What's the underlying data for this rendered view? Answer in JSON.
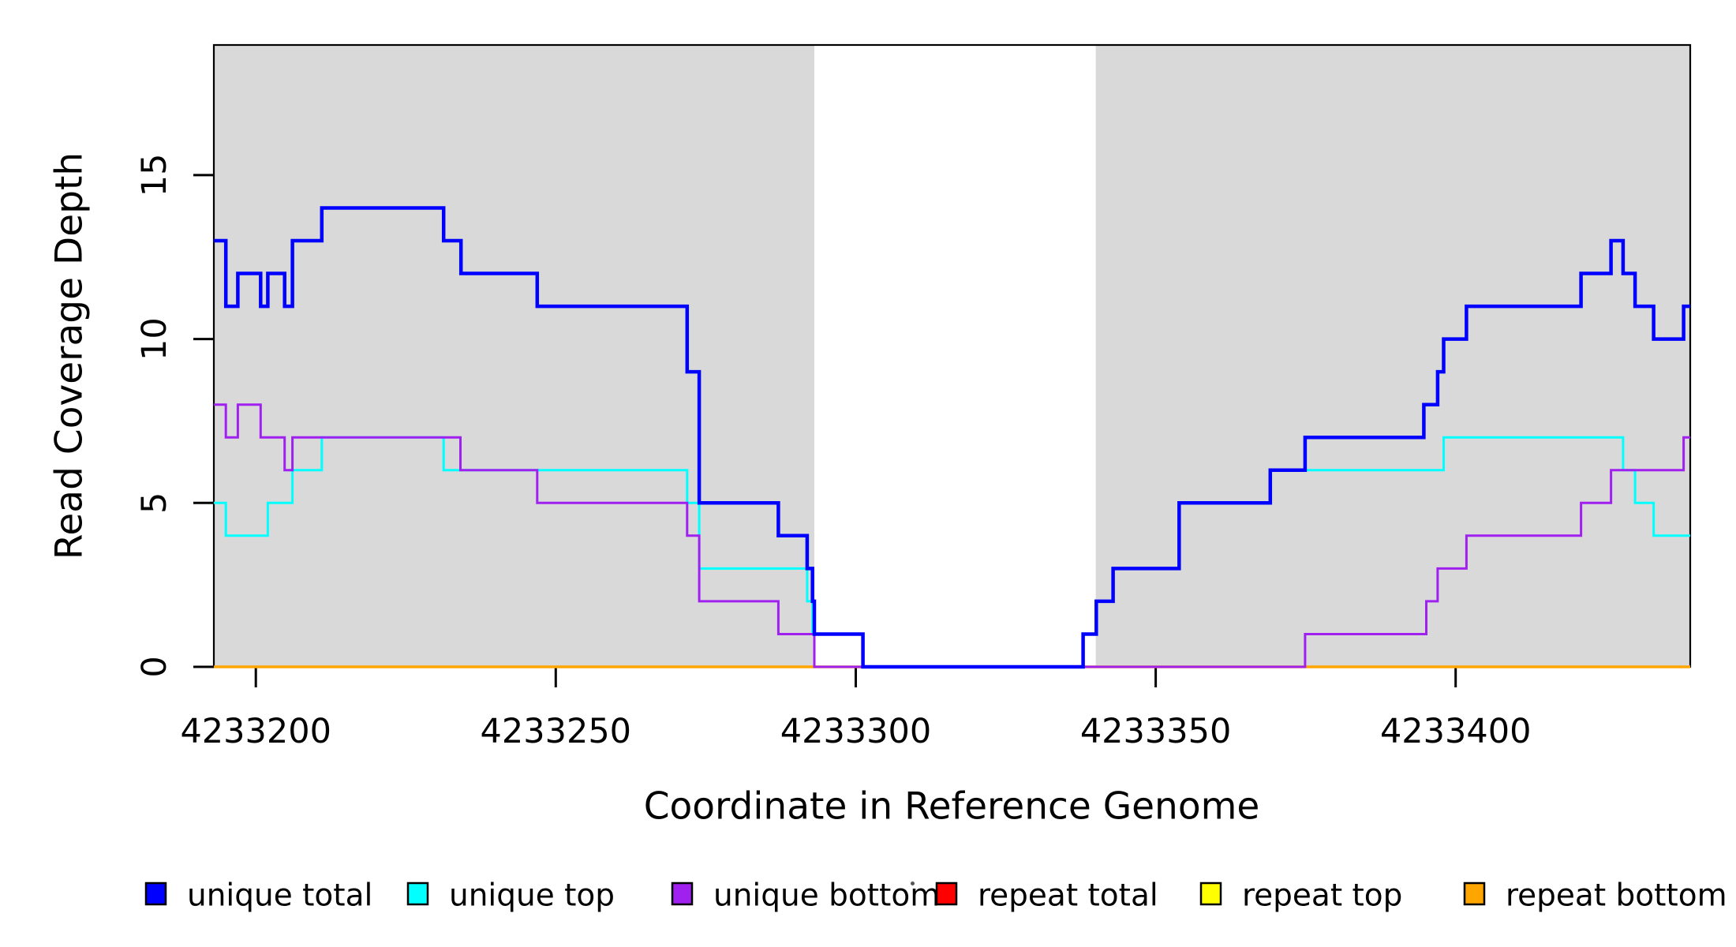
{
  "chart_data": {
    "type": "line",
    "subtype": "step-coverage-plot",
    "title": "",
    "xlabel": "Coordinate in Reference Genome",
    "ylabel": "Read Coverage Depth",
    "x_domain": [
      4233193.0,
      4233439.1
    ],
    "y_domain": [
      0,
      18.97
    ],
    "x_ticks": [
      4233200,
      4233250,
      4233300,
      4233350,
      4233400
    ],
    "y_ticks": [
      0,
      5,
      10,
      15
    ],
    "grid": "off",
    "background_color": "#ffffff",
    "shaded_region_color": "#d9d9d9",
    "shaded_regions": [
      {
        "name": "left-unique-block",
        "x0": 4233193.0,
        "x1": 4233293.1
      },
      {
        "name": "right-unique-block",
        "x0": 4233340.0,
        "x1": 4233439.1
      }
    ],
    "series": [
      {
        "key": "repeat_total",
        "label": "repeat total",
        "color": "#ff0000",
        "line_width": 2.5,
        "steps": [
          [
            4233193,
            0
          ]
        ]
      },
      {
        "key": "repeat_top",
        "label": "repeat top",
        "color": "#ffff00",
        "line_width": 2.5,
        "steps": [
          [
            4233193,
            0
          ]
        ]
      },
      {
        "key": "repeat_bottom",
        "label": "repeat bottom",
        "color": "#ffa500",
        "line_width": 3.5,
        "steps": [
          [
            4233193,
            0
          ]
        ]
      },
      {
        "key": "unique_top",
        "label": "unique top",
        "color": "#00ffff",
        "line_width": 3,
        "steps": [
          [
            4233193,
            5
          ],
          [
            4233195,
            4
          ],
          [
            4233202,
            5
          ],
          [
            4233206.1,
            6
          ],
          [
            4233211,
            7
          ],
          [
            4233231.3,
            6
          ],
          [
            4233271.9,
            5
          ],
          [
            4233273.9,
            3
          ],
          [
            4233291.9,
            2
          ],
          [
            4233292.8,
            1
          ],
          [
            4233301.2,
            0
          ],
          [
            4233337.9,
            1
          ],
          [
            4233340.1,
            2
          ],
          [
            4233342.9,
            3
          ],
          [
            4233353.9,
            5
          ],
          [
            4233369.1,
            6
          ],
          [
            4233398,
            7
          ],
          [
            4233427.9,
            6
          ],
          [
            4233429.9,
            5
          ],
          [
            4233433,
            4
          ]
        ]
      },
      {
        "key": "unique_bottom",
        "label": "unique bottom",
        "color": "#a020f0",
        "line_width": 3,
        "steps": [
          [
            4233193,
            8
          ],
          [
            4233195,
            7
          ],
          [
            4233197,
            8
          ],
          [
            4233200.8,
            7
          ],
          [
            4233204.8,
            6
          ],
          [
            4233206.1,
            7
          ],
          [
            4233234.1,
            6
          ],
          [
            4233246.9,
            5
          ],
          [
            4233271.9,
            4
          ],
          [
            4233273.9,
            2
          ],
          [
            4233287.1,
            1
          ],
          [
            4233293.1,
            0
          ],
          [
            4233374.9,
            1
          ],
          [
            4233395.1,
            2
          ],
          [
            4233397,
            3
          ],
          [
            4233401.8,
            4
          ],
          [
            4233420.9,
            5
          ],
          [
            4233425.9,
            6
          ],
          [
            4233438,
            7
          ]
        ]
      },
      {
        "key": "unique_total",
        "label": "unique total",
        "color": "#0000ff",
        "line_width": 4.5,
        "steps": [
          [
            4233193,
            13
          ],
          [
            4233195,
            11
          ],
          [
            4233197,
            12
          ],
          [
            4233200.8,
            11
          ],
          [
            4233202,
            12
          ],
          [
            4233204.8,
            11
          ],
          [
            4233206.1,
            13
          ],
          [
            4233211,
            14
          ],
          [
            4233231.3,
            13
          ],
          [
            4233234.2,
            12
          ],
          [
            4233246.9,
            11
          ],
          [
            4233271.9,
            9
          ],
          [
            4233273.9,
            5
          ],
          [
            4233287.1,
            4
          ],
          [
            4233291.9,
            3
          ],
          [
            4233292.8,
            2
          ],
          [
            4233293.1,
            1
          ],
          [
            4233301.2,
            0
          ],
          [
            4233337.9,
            1
          ],
          [
            4233340.1,
            2
          ],
          [
            4233342.9,
            3
          ],
          [
            4233353.9,
            5
          ],
          [
            4233369.1,
            6
          ],
          [
            4233374.9,
            7
          ],
          [
            4233394.7,
            8
          ],
          [
            4233397,
            9
          ],
          [
            4233398,
            10
          ],
          [
            4233401.8,
            11
          ],
          [
            4233420.9,
            12
          ],
          [
            4233425.9,
            13
          ],
          [
            4233427.9,
            12
          ],
          [
            4233429.9,
            11
          ],
          [
            4233433,
            10
          ],
          [
            4233438,
            11
          ]
        ]
      }
    ],
    "legend": {
      "position": "bottom",
      "order": [
        "unique_total",
        "unique_top",
        "unique_bottom",
        "repeat_total",
        "repeat_top",
        "repeat_bottom"
      ]
    }
  }
}
